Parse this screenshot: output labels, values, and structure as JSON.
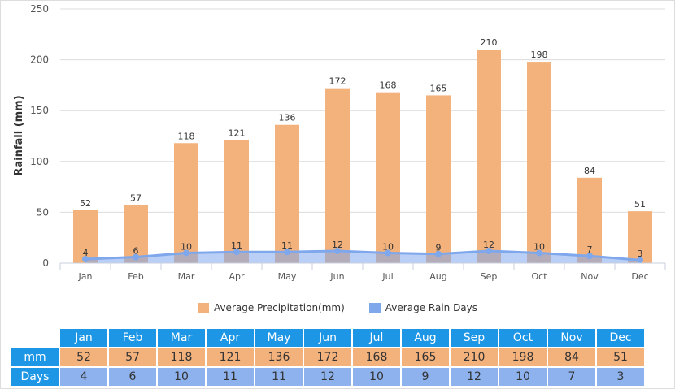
{
  "colors": {
    "bar": "#f3b17b",
    "line": "#7fa7ec",
    "header": "#1e96e6"
  },
  "chart_data": {
    "type": "bar",
    "categories": [
      "Jan",
      "Feb",
      "Mar",
      "Apr",
      "May",
      "Jun",
      "Jul",
      "Aug",
      "Sep",
      "Oct",
      "Nov",
      "Dec"
    ],
    "series": [
      {
        "name": "Average Precipitation(mm)",
        "type": "bar",
        "values": [
          52,
          57,
          118,
          121,
          136,
          172,
          168,
          165,
          210,
          198,
          84,
          51
        ]
      },
      {
        "name": "Average Rain Days",
        "type": "area",
        "values": [
          4,
          6,
          10,
          11,
          11,
          12,
          10,
          9,
          12,
          10,
          7,
          3
        ]
      }
    ],
    "ylabel": "Rainfall (mm)",
    "ylim": [
      0,
      250
    ],
    "yticks": [
      0,
      50,
      100,
      150,
      200,
      250
    ],
    "grid": true,
    "legend": "bottom-center"
  },
  "legend": {
    "precip": "Average Precipitation(mm)",
    "days": "Average Rain Days"
  },
  "table": {
    "months": [
      "Jan",
      "Feb",
      "Mar",
      "Apr",
      "May",
      "Jun",
      "Jul",
      "Aug",
      "Sep",
      "Oct",
      "Nov",
      "Dec"
    ],
    "mm_label": "mm",
    "mm": [
      52,
      57,
      118,
      121,
      136,
      172,
      168,
      165,
      210,
      198,
      84,
      51
    ],
    "days_label": "Days",
    "days": [
      4,
      6,
      10,
      11,
      11,
      12,
      10,
      9,
      12,
      10,
      7,
      3
    ]
  }
}
